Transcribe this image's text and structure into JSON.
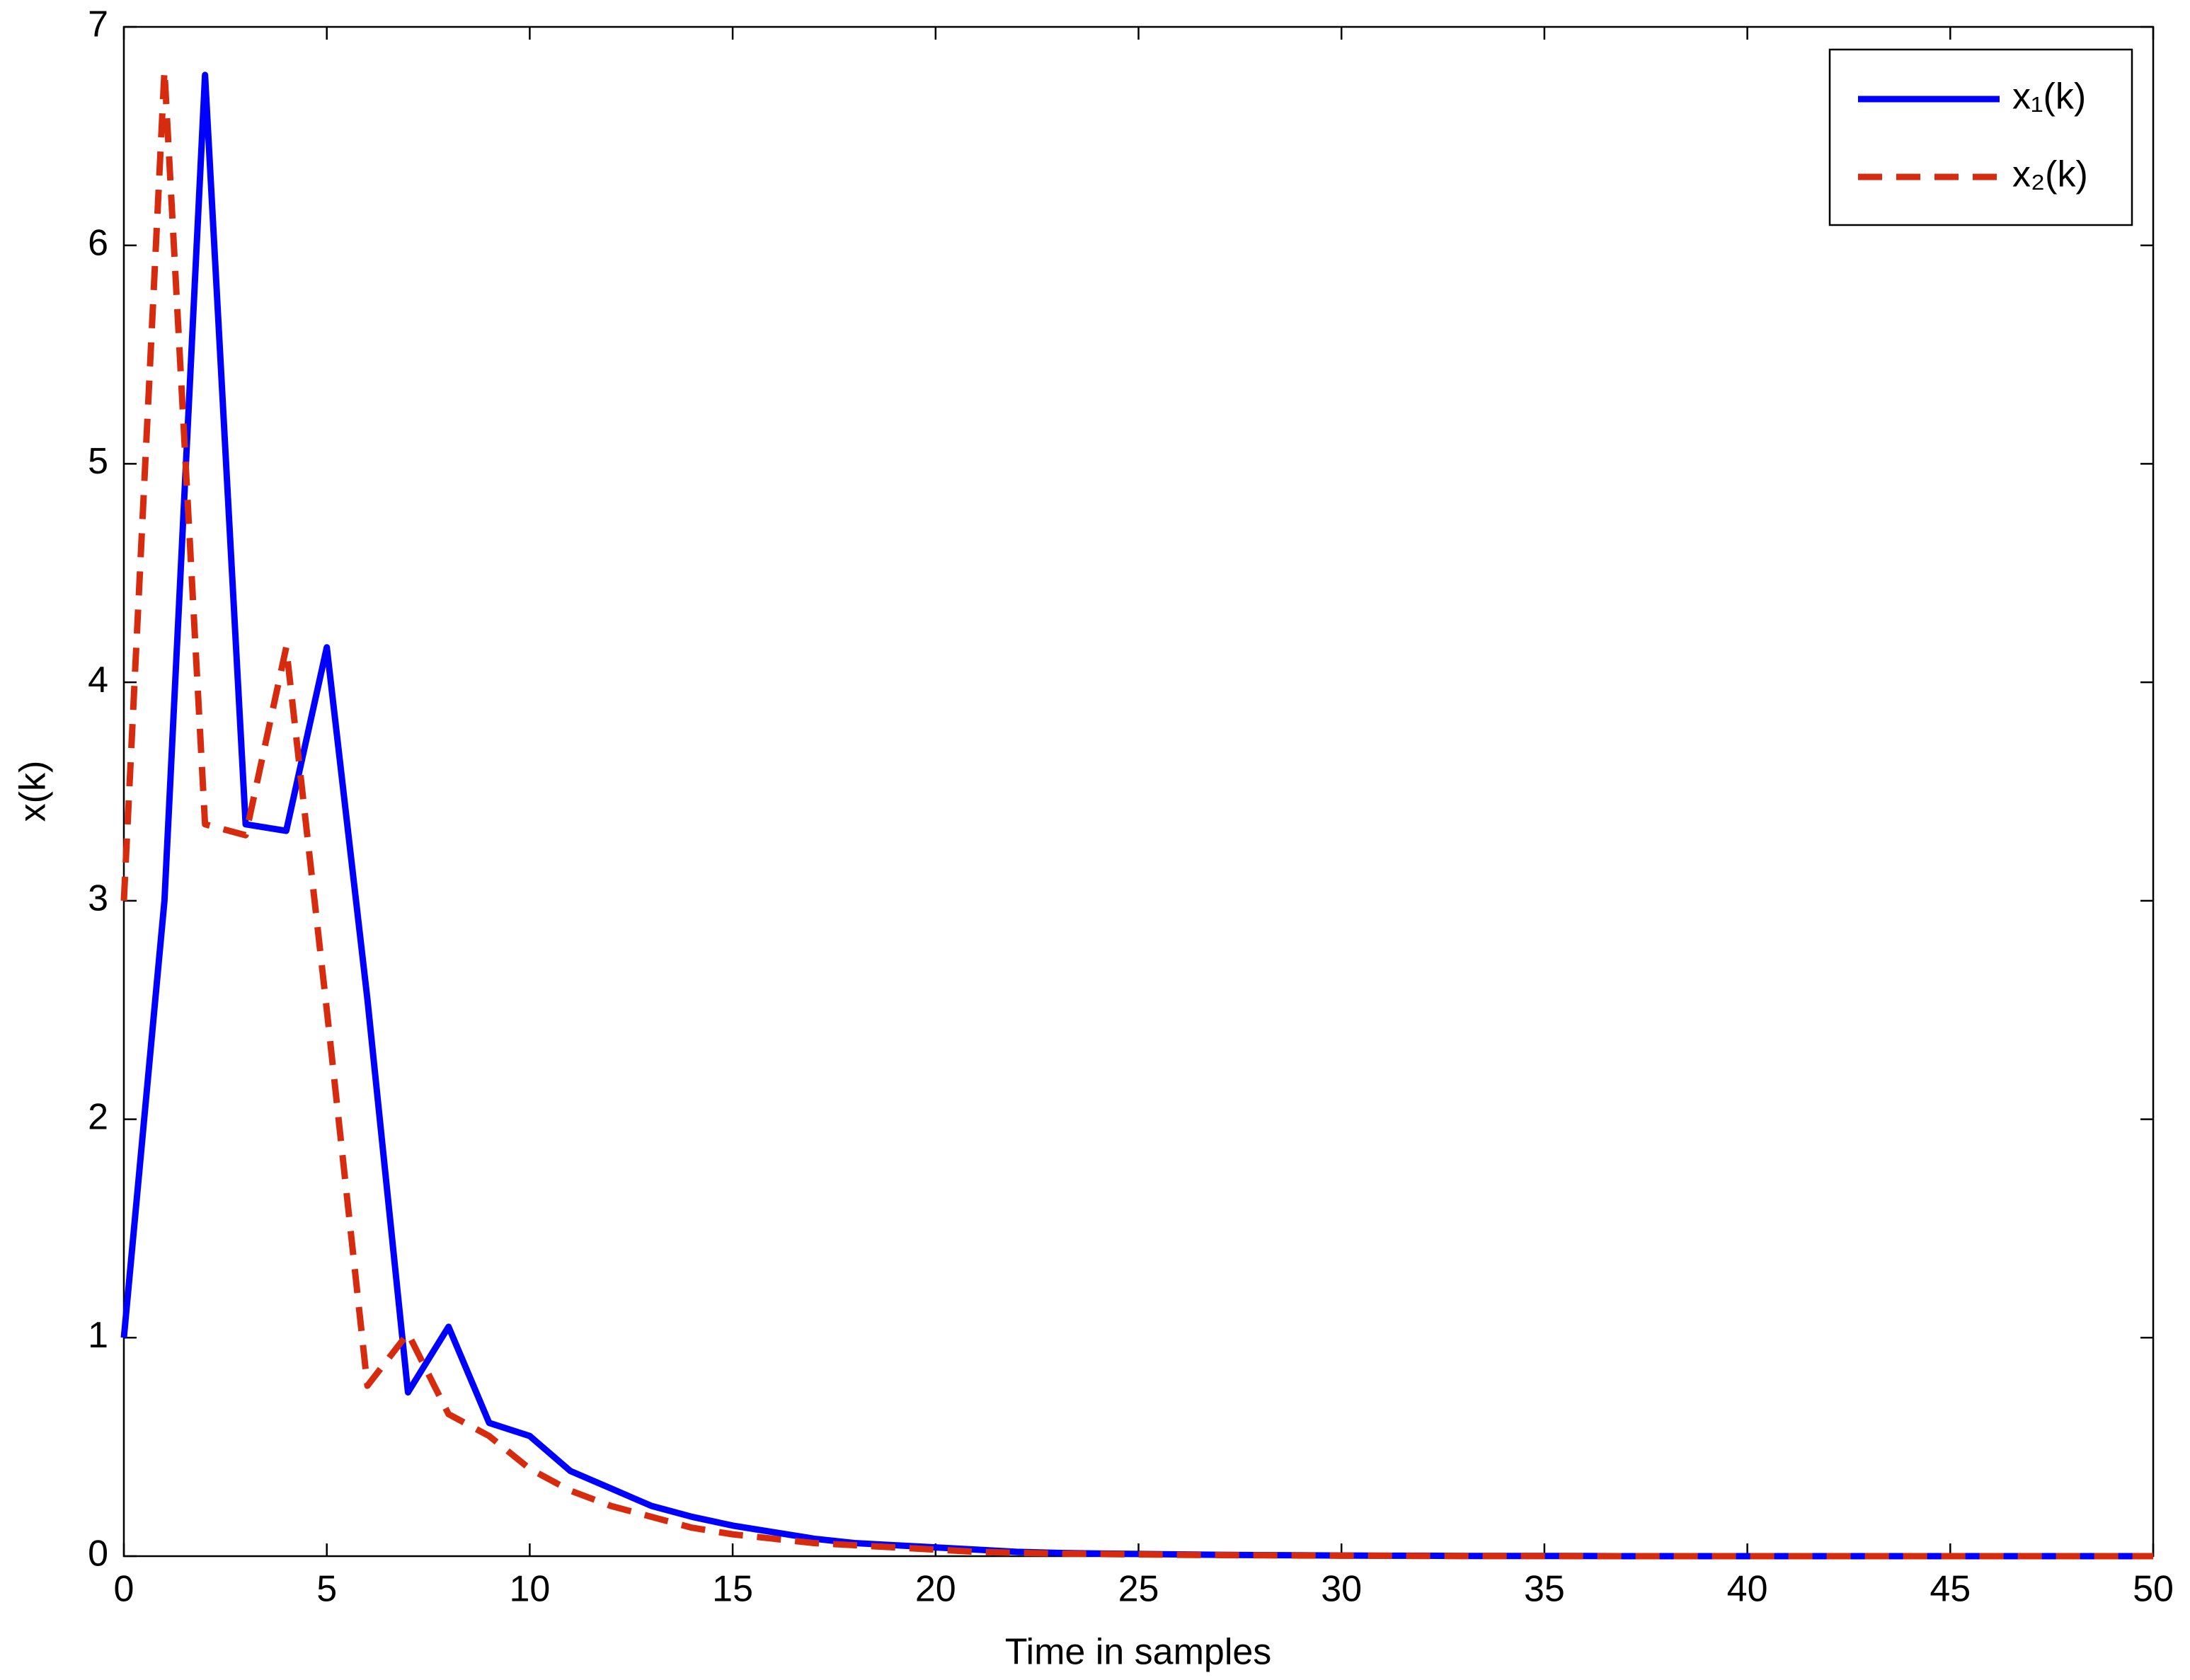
{
  "chart_data": {
    "type": "line",
    "xlabel": "Time in samples",
    "ylabel": "x(k)",
    "x": [
      0,
      1,
      2,
      3,
      4,
      5,
      6,
      7,
      8,
      9,
      10,
      11,
      12,
      13,
      14,
      15,
      16,
      17,
      18,
      19,
      20,
      21,
      22,
      23,
      24,
      25,
      26,
      27,
      28,
      29,
      30,
      31,
      32,
      33,
      34,
      35,
      36,
      37,
      38,
      39,
      40,
      41,
      42,
      43,
      44,
      45,
      46,
      47,
      48,
      49,
      50
    ],
    "series": [
      {
        "name": "x₁(k)",
        "color": "#0000ff",
        "style": "solid",
        "values": [
          1,
          3,
          6.78,
          3.35,
          3.32,
          4.16,
          2.55,
          0.75,
          1.05,
          0.61,
          0.55,
          0.39,
          0.31,
          0.23,
          0.18,
          0.14,
          0.11,
          0.08,
          0.06,
          0.05,
          0.04,
          0.03,
          0.02,
          0.015,
          0.012,
          0.01,
          0.008,
          0.006,
          0.005,
          0.004,
          0.003,
          0.002,
          0.002,
          0.001,
          0.001,
          0.001,
          0.001,
          0,
          0,
          0,
          0,
          0,
          0,
          0,
          0,
          0,
          0,
          0,
          0,
          0,
          0
        ]
      },
      {
        "name": "x₂(k)",
        "color": "#d62b0e",
        "style": "dashed",
        "values": [
          3,
          6.8,
          3.35,
          3.3,
          4.16,
          2.5,
          0.78,
          1.02,
          0.65,
          0.55,
          0.4,
          0.3,
          0.23,
          0.18,
          0.13,
          0.1,
          0.08,
          0.06,
          0.05,
          0.04,
          0.03,
          0.02,
          0.015,
          0.012,
          0.01,
          0.008,
          0.006,
          0.005,
          0.004,
          0.003,
          0.002,
          0.002,
          0.001,
          0.001,
          0.001,
          0.001,
          0,
          0,
          0,
          0,
          0,
          0,
          0,
          0,
          0,
          0,
          0,
          0,
          0,
          0,
          0
        ]
      }
    ],
    "xlim": [
      0,
      50
    ],
    "xticks": [
      0,
      5,
      10,
      15,
      20,
      25,
      30,
      35,
      40,
      45,
      50
    ],
    "ylim": [
      0,
      7
    ],
    "yticks": [
      0,
      1,
      2,
      3,
      4,
      5,
      6,
      7
    ],
    "grid": false,
    "legend": "upper-right"
  }
}
